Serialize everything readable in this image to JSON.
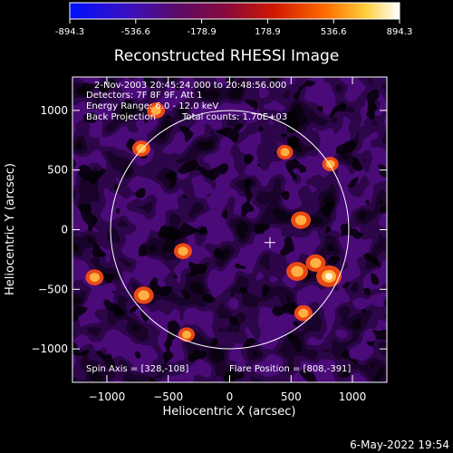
{
  "colorbar": {
    "ticks": [
      "-894.3",
      "-536.6",
      "-178.9",
      "178.9",
      "536.6",
      "894.3"
    ],
    "range": [
      -894.3,
      894.3
    ],
    "colormap": [
      "#0000ff",
      "#4a006a",
      "#7a0a8a",
      "#b01010",
      "#ff4000",
      "#ffa020",
      "#ffffff"
    ]
  },
  "chart_data": {
    "type": "heatmap",
    "title": "Reconstructed RHESSI Image",
    "xlabel": "Heliocentric X (arcsec)",
    "ylabel": "Heliocentric Y (arcsec)",
    "xlim": [
      -1280,
      1280
    ],
    "ylim": [
      -1280,
      1280
    ],
    "x_ticks": [
      "−1000",
      "−500",
      "0",
      "500",
      "1000"
    ],
    "y_ticks": [
      "1000",
      "500",
      "0",
      "−500",
      "−1000"
    ],
    "x_tick_values": [
      -1000,
      -500,
      0,
      500,
      1000
    ],
    "y_tick_values": [
      1000,
      500,
      0,
      -500,
      -1000
    ],
    "solar_limb": {
      "center": [
        0,
        0
      ],
      "radius_arcsec": 970
    },
    "spin_axis_marker": [
      328,
      -108
    ],
    "flare_position": [
      808,
      -391
    ],
    "annotations": [
      "2-Nov-2003 20:45:24.000 to 20:48:56.000",
      "Detectors: 7F 8F 9F, Att 1",
      "Energy Range: 6.0 - 12.0 keV",
      "Back Projection",
      "Total counts: 1.70E+03"
    ],
    "footer_left": "Spin Axis = [328,-108]",
    "footer_right": "Flare Position = [808,-391]"
  },
  "timestamp": "6-May-2022 19:54"
}
